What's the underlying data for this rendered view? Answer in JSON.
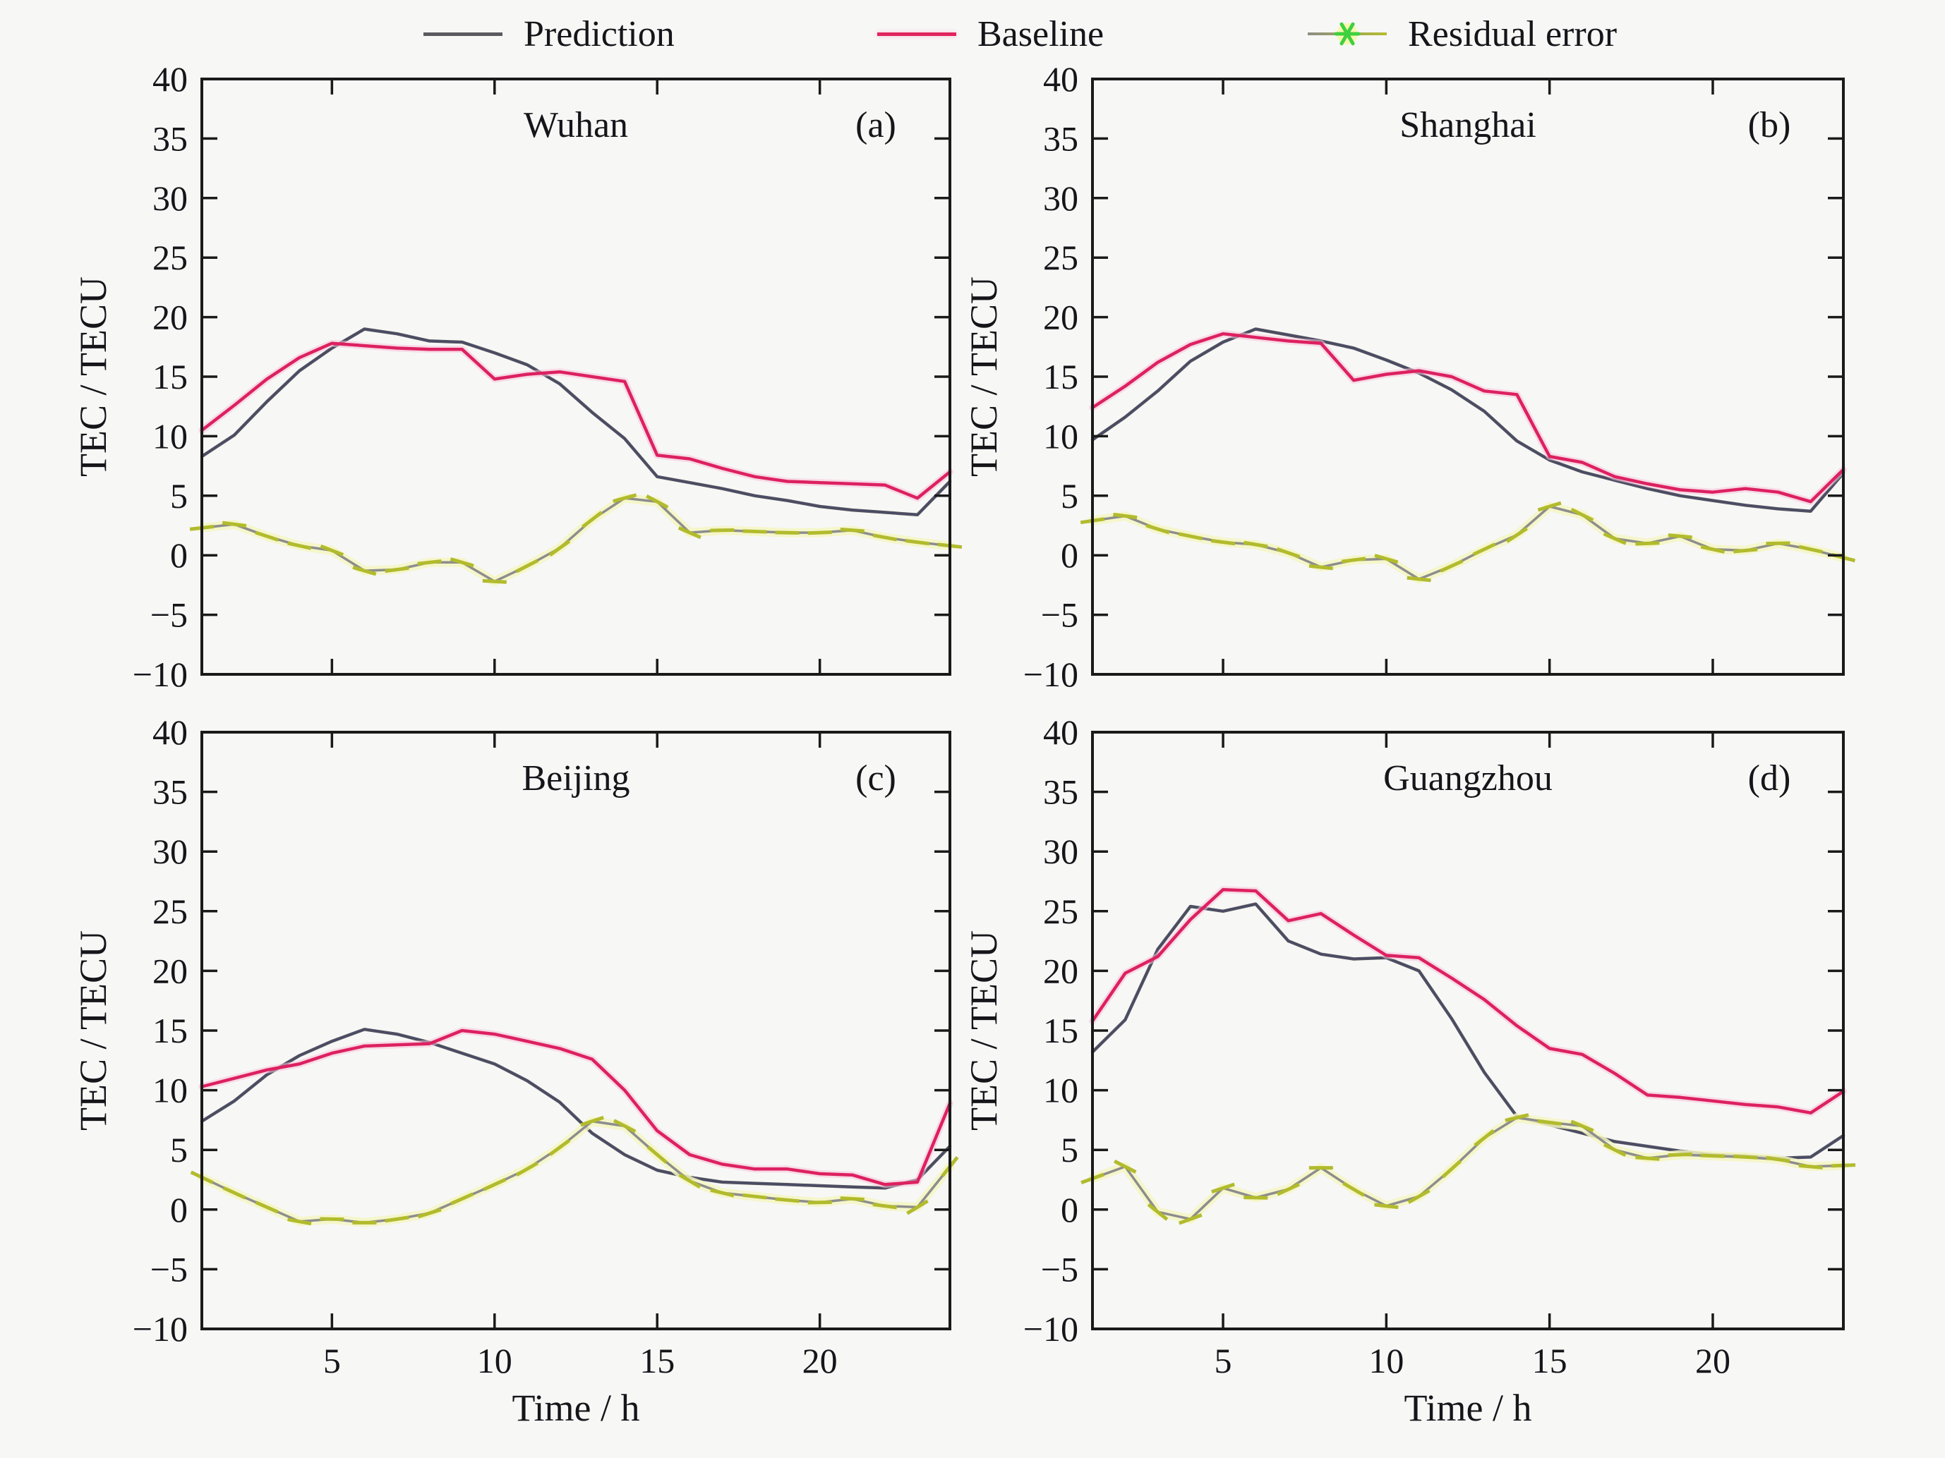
{
  "figure": {
    "background": "#f7f7f6",
    "kind": "2x2 line chart panels, TEC prediction vs baseline with residual error"
  },
  "legend": {
    "items": [
      {
        "label": "Prediction",
        "swatch": "line",
        "color": "#5a5a60"
      },
      {
        "label": "Baseline",
        "swatch": "line",
        "color": "#e0245e"
      },
      {
        "label": "Residual error",
        "swatch": "line-asterisk",
        "color": "#8d8d84",
        "color2": "#b4bd2f",
        "marker_color": "#3fd03f",
        "marker_halo": "#f5f7a8"
      }
    ]
  },
  "axes": {
    "ylabel": "TEC / TECU",
    "xlabel": "Time / h",
    "xlim": [
      1,
      24
    ],
    "ylim": [
      -10,
      40
    ],
    "yticks": [
      40,
      35,
      30,
      25,
      20,
      15,
      10,
      5,
      0,
      -5,
      -10
    ],
    "xticks": [
      5,
      10,
      15,
      20
    ],
    "grid": false,
    "tick_direction": "in",
    "legend_position": "top-outside"
  },
  "colors": {
    "axis": "#1a1a1a",
    "background": "#f7f7f6",
    "prediction": "#54555e",
    "prediction_core": "#3d3f72",
    "baseline": "#dd2160",
    "baseline_halo": "#f8c3d8",
    "residual": "#b2bb2d",
    "residual_base": "#8d8d8d",
    "residual_halo": "#f4f6c2"
  },
  "chart_data": [
    {
      "type": "line",
      "panel": "(a)",
      "title": "Wuhan",
      "xlabel": "Time / h",
      "ylabel": "TEC / TECU",
      "xlim": [
        1,
        24
      ],
      "ylim": [
        -10,
        40
      ],
      "x": [
        1,
        2,
        3,
        4,
        5,
        6,
        7,
        8,
        9,
        10,
        11,
        12,
        13,
        14,
        15,
        16,
        17,
        18,
        19,
        20,
        21,
        22,
        23,
        24
      ],
      "series": [
        {
          "name": "Prediction",
          "values": [
            8.3,
            10.1,
            12.9,
            15.5,
            17.4,
            19.0,
            18.6,
            18.0,
            17.9,
            17.0,
            16.0,
            14.4,
            12.0,
            9.8,
            6.6,
            6.1,
            5.6,
            5.0,
            4.6,
            4.1,
            3.8,
            3.6,
            3.4,
            6.2
          ]
        },
        {
          "name": "Baseline",
          "values": [
            10.5,
            12.6,
            14.8,
            16.6,
            17.8,
            17.6,
            17.4,
            17.3,
            17.3,
            14.8,
            15.2,
            15.4,
            15.0,
            14.6,
            8.4,
            8.1,
            7.3,
            6.6,
            6.2,
            6.1,
            6.0,
            5.9,
            4.8,
            7.0
          ]
        },
        {
          "name": "Residual error",
          "values": [
            2.3,
            2.6,
            1.6,
            0.8,
            0.4,
            -1.3,
            -1.2,
            -0.6,
            -0.6,
            -2.2,
            -0.9,
            0.6,
            3.0,
            4.8,
            4.5,
            1.9,
            2.1,
            2.0,
            1.9,
            1.9,
            2.1,
            1.5,
            1.1,
            0.8
          ]
        }
      ]
    },
    {
      "type": "line",
      "panel": "(b)",
      "title": "Shanghai",
      "xlabel": "Time / h",
      "ylabel": "TEC / TECU",
      "xlim": [
        1,
        24
      ],
      "ylim": [
        -10,
        40
      ],
      "x": [
        1,
        2,
        3,
        4,
        5,
        6,
        7,
        8,
        9,
        10,
        11,
        12,
        13,
        14,
        15,
        16,
        17,
        18,
        19,
        20,
        21,
        22,
        23,
        24
      ],
      "series": [
        {
          "name": "Prediction",
          "values": [
            9.7,
            11.6,
            13.8,
            16.3,
            17.9,
            19.0,
            18.5,
            18.0,
            17.4,
            16.4,
            15.3,
            13.9,
            12.1,
            9.6,
            8.0,
            7.0,
            6.3,
            5.6,
            5.0,
            4.6,
            4.2,
            3.9,
            3.7,
            6.9
          ]
        },
        {
          "name": "Baseline",
          "values": [
            12.4,
            14.2,
            16.2,
            17.7,
            18.6,
            18.3,
            18.0,
            17.8,
            14.7,
            15.2,
            15.5,
            15.0,
            13.8,
            13.5,
            8.3,
            7.8,
            6.6,
            6.0,
            5.5,
            5.3,
            5.6,
            5.3,
            4.5,
            7.2
          ]
        },
        {
          "name": "Residual error",
          "values": [
            2.9,
            3.3,
            2.2,
            1.6,
            1.1,
            0.9,
            0.2,
            -1.0,
            -0.4,
            -0.3,
            -2.0,
            -0.9,
            0.5,
            1.7,
            4.1,
            3.4,
            1.4,
            1.0,
            1.6,
            0.5,
            0.4,
            1.0,
            0.5,
            -0.2
          ]
        }
      ]
    },
    {
      "type": "line",
      "panel": "(c)",
      "title": "Beijing",
      "xlabel": "Time / h",
      "ylabel": "TEC / TECU",
      "xlim": [
        1,
        24
      ],
      "ylim": [
        -10,
        40
      ],
      "x": [
        1,
        2,
        3,
        4,
        5,
        6,
        7,
        8,
        9,
        10,
        11,
        12,
        13,
        14,
        15,
        16,
        17,
        18,
        19,
        20,
        21,
        22,
        23,
        24
      ],
      "series": [
        {
          "name": "Prediction",
          "values": [
            7.4,
            9.1,
            11.3,
            12.9,
            14.1,
            15.1,
            14.7,
            14.0,
            13.1,
            12.2,
            10.8,
            9.0,
            6.4,
            4.6,
            3.3,
            2.7,
            2.3,
            2.2,
            2.1,
            2.0,
            1.9,
            1.8,
            2.5,
            5.3
          ]
        },
        {
          "name": "Baseline",
          "values": [
            10.3,
            11.0,
            11.7,
            12.2,
            13.1,
            13.7,
            13.8,
            13.9,
            15.0,
            14.7,
            14.1,
            13.5,
            12.6,
            10.0,
            6.6,
            4.6,
            3.8,
            3.4,
            3.4,
            3.0,
            2.9,
            2.1,
            2.3,
            8.9
          ]
        },
        {
          "name": "Residual error",
          "values": [
            2.7,
            1.4,
            0.2,
            -1.0,
            -0.8,
            -1.1,
            -0.8,
            -0.3,
            0.9,
            2.1,
            3.4,
            5.2,
            7.4,
            7.0,
            4.6,
            2.4,
            1.4,
            1.1,
            0.8,
            0.6,
            0.9,
            0.3,
            0.2,
            3.6
          ]
        }
      ]
    },
    {
      "type": "line",
      "panel": "(d)",
      "title": "Guangzhou",
      "xlabel": "Time / h",
      "ylabel": "TEC / TECU",
      "xlim": [
        1,
        24
      ],
      "ylim": [
        -10,
        40
      ],
      "x": [
        1,
        2,
        3,
        4,
        5,
        6,
        7,
        8,
        9,
        10,
        11,
        12,
        13,
        14,
        15,
        16,
        17,
        18,
        19,
        20,
        21,
        22,
        23,
        24
      ],
      "series": [
        {
          "name": "Prediction",
          "values": [
            13.2,
            15.9,
            21.8,
            25.4,
            25.0,
            25.6,
            22.5,
            21.4,
            21.0,
            21.1,
            20.0,
            16.0,
            11.5,
            7.8,
            7.1,
            6.4,
            5.7,
            5.3,
            4.9,
            4.6,
            4.5,
            4.3,
            4.4,
            6.2
          ]
        },
        {
          "name": "Baseline",
          "values": [
            15.8,
            19.8,
            21.2,
            24.3,
            26.8,
            26.7,
            24.2,
            24.8,
            23.0,
            21.3,
            21.1,
            19.4,
            17.6,
            15.4,
            13.5,
            13.0,
            11.4,
            9.6,
            9.4,
            9.1,
            8.8,
            8.6,
            8.1,
            9.9
          ]
        },
        {
          "name": "Residual error",
          "values": [
            2.6,
            3.6,
            -0.2,
            -0.8,
            1.8,
            1.0,
            1.7,
            3.5,
            1.7,
            0.3,
            1.1,
            3.4,
            6.0,
            7.7,
            7.3,
            7.0,
            5.0,
            4.3,
            4.6,
            4.5,
            4.4,
            4.2,
            3.6,
            3.7
          ]
        }
      ]
    }
  ]
}
